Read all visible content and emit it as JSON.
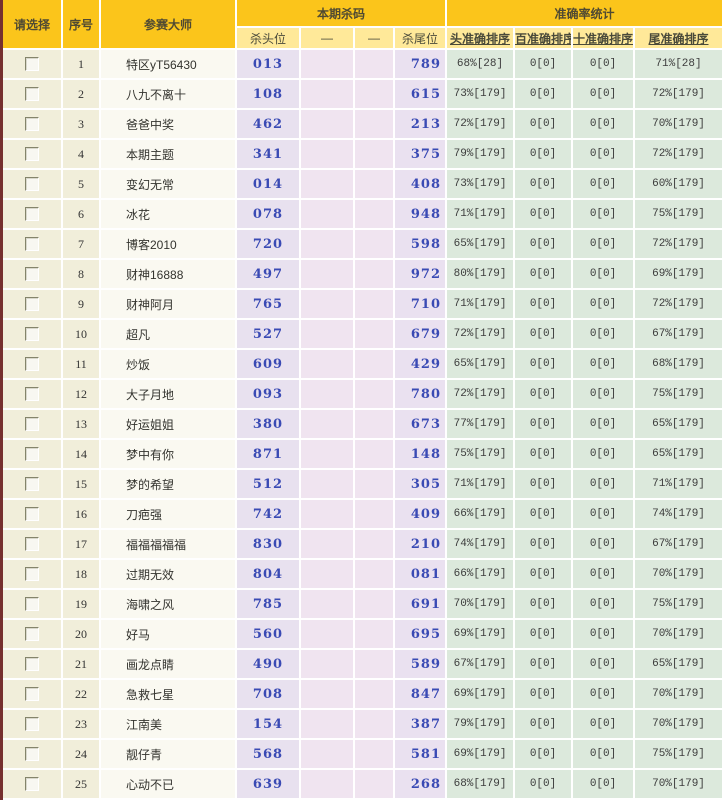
{
  "table": {
    "headers": {
      "select": "请选择",
      "index": "序号",
      "master": "参赛大师",
      "kill_group": "本期杀码",
      "accuracy_group": "准确率统计",
      "kill_head": "杀头位",
      "dash1": "—",
      "dash2": "—",
      "kill_tail": "杀尾位",
      "acc_head": "头准确排序",
      "acc_hundred": "百准确排序",
      "acc_ten": "十准确排序",
      "acc_tail": "尾准确排序"
    },
    "rows": [
      {
        "index": "1",
        "master": "特区yT56430",
        "kill_head": "013",
        "kill_tail": "789",
        "head_acc": "68%[28]",
        "hundred_acc": "0[0]",
        "ten_acc": "0[0]",
        "tail_acc": "71%[28]"
      },
      {
        "index": "2",
        "master": "八九不离十",
        "kill_head": "108",
        "kill_tail": "615",
        "head_acc": "73%[179]",
        "hundred_acc": "0[0]",
        "ten_acc": "0[0]",
        "tail_acc": "72%[179]"
      },
      {
        "index": "3",
        "master": "爸爸中奖",
        "kill_head": "462",
        "kill_tail": "213",
        "head_acc": "72%[179]",
        "hundred_acc": "0[0]",
        "ten_acc": "0[0]",
        "tail_acc": "70%[179]"
      },
      {
        "index": "4",
        "master": "本期主题",
        "kill_head": "341",
        "kill_tail": "375",
        "head_acc": "79%[179]",
        "hundred_acc": "0[0]",
        "ten_acc": "0[0]",
        "tail_acc": "72%[179]"
      },
      {
        "index": "5",
        "master": "变幻无常",
        "kill_head": "014",
        "kill_tail": "408",
        "head_acc": "73%[179]",
        "hundred_acc": "0[0]",
        "ten_acc": "0[0]",
        "tail_acc": "60%[179]"
      },
      {
        "index": "6",
        "master": "冰花",
        "kill_head": "078",
        "kill_tail": "948",
        "head_acc": "71%[179]",
        "hundred_acc": "0[0]",
        "ten_acc": "0[0]",
        "tail_acc": "75%[179]"
      },
      {
        "index": "7",
        "master": "博客2010",
        "kill_head": "720",
        "kill_tail": "598",
        "head_acc": "65%[179]",
        "hundred_acc": "0[0]",
        "ten_acc": "0[0]",
        "tail_acc": "72%[179]"
      },
      {
        "index": "8",
        "master": "财神16888",
        "kill_head": "497",
        "kill_tail": "972",
        "head_acc": "80%[179]",
        "hundred_acc": "0[0]",
        "ten_acc": "0[0]",
        "tail_acc": "69%[179]"
      },
      {
        "index": "9",
        "master": "财神阿月",
        "kill_head": "765",
        "kill_tail": "710",
        "head_acc": "71%[179]",
        "hundred_acc": "0[0]",
        "ten_acc": "0[0]",
        "tail_acc": "72%[179]"
      },
      {
        "index": "10",
        "master": "超凡",
        "kill_head": "527",
        "kill_tail": "679",
        "head_acc": "72%[179]",
        "hundred_acc": "0[0]",
        "ten_acc": "0[0]",
        "tail_acc": "67%[179]"
      },
      {
        "index": "11",
        "master": "炒饭",
        "kill_head": "609",
        "kill_tail": "429",
        "head_acc": "65%[179]",
        "hundred_acc": "0[0]",
        "ten_acc": "0[0]",
        "tail_acc": "68%[179]"
      },
      {
        "index": "12",
        "master": "大子月地",
        "kill_head": "093",
        "kill_tail": "780",
        "head_acc": "72%[179]",
        "hundred_acc": "0[0]",
        "ten_acc": "0[0]",
        "tail_acc": "75%[179]"
      },
      {
        "index": "13",
        "master": "好运姐姐",
        "kill_head": "380",
        "kill_tail": "673",
        "head_acc": "77%[179]",
        "hundred_acc": "0[0]",
        "ten_acc": "0[0]",
        "tail_acc": "65%[179]"
      },
      {
        "index": "14",
        "master": "梦中有你",
        "kill_head": "871",
        "kill_tail": "148",
        "head_acc": "75%[179]",
        "hundred_acc": "0[0]",
        "ten_acc": "0[0]",
        "tail_acc": "65%[179]"
      },
      {
        "index": "15",
        "master": "梦的希望",
        "kill_head": "512",
        "kill_tail": "305",
        "head_acc": "71%[179]",
        "hundred_acc": "0[0]",
        "ten_acc": "0[0]",
        "tail_acc": "71%[179]"
      },
      {
        "index": "16",
        "master": "刀疤强",
        "kill_head": "742",
        "kill_tail": "409",
        "head_acc": "66%[179]",
        "hundred_acc": "0[0]",
        "ten_acc": "0[0]",
        "tail_acc": "74%[179]"
      },
      {
        "index": "17",
        "master": "福福福福福",
        "kill_head": "830",
        "kill_tail": "210",
        "head_acc": "74%[179]",
        "hundred_acc": "0[0]",
        "ten_acc": "0[0]",
        "tail_acc": "67%[179]"
      },
      {
        "index": "18",
        "master": "过期无效",
        "kill_head": "804",
        "kill_tail": "081",
        "head_acc": "66%[179]",
        "hundred_acc": "0[0]",
        "ten_acc": "0[0]",
        "tail_acc": "70%[179]"
      },
      {
        "index": "19",
        "master": "海啸之风",
        "kill_head": "785",
        "kill_tail": "691",
        "head_acc": "70%[179]",
        "hundred_acc": "0[0]",
        "ten_acc": "0[0]",
        "tail_acc": "75%[179]"
      },
      {
        "index": "20",
        "master": "好马",
        "kill_head": "560",
        "kill_tail": "695",
        "head_acc": "69%[179]",
        "hundred_acc": "0[0]",
        "ten_acc": "0[0]",
        "tail_acc": "70%[179]"
      },
      {
        "index": "21",
        "master": "画龙点睛",
        "kill_head": "490",
        "kill_tail": "589",
        "head_acc": "67%[179]",
        "hundred_acc": "0[0]",
        "ten_acc": "0[0]",
        "tail_acc": "65%[179]"
      },
      {
        "index": "22",
        "master": "急救七星",
        "kill_head": "708",
        "kill_tail": "847",
        "head_acc": "69%[179]",
        "hundred_acc": "0[0]",
        "ten_acc": "0[0]",
        "tail_acc": "70%[179]"
      },
      {
        "index": "23",
        "master": "江南美",
        "kill_head": "154",
        "kill_tail": "387",
        "head_acc": "79%[179]",
        "hundred_acc": "0[0]",
        "ten_acc": "0[0]",
        "tail_acc": "70%[179]"
      },
      {
        "index": "24",
        "master": "靓仔青",
        "kill_head": "568",
        "kill_tail": "581",
        "head_acc": "69%[179]",
        "hundred_acc": "0[0]",
        "ten_acc": "0[0]",
        "tail_acc": "75%[179]"
      },
      {
        "index": "25",
        "master": "心动不已",
        "kill_head": "639",
        "kill_tail": "268",
        "head_acc": "68%[179]",
        "hundred_acc": "0[0]",
        "ten_acc": "0[0]",
        "tail_acc": "70%[179]"
      }
    ]
  },
  "colors": {
    "header_gold": "#fbc51b",
    "subheader_yellow": "#ffe999",
    "row_beige": "#f1eeda",
    "row_lavender": "#e8e1ef",
    "row_green": "#dce9dc",
    "number_blue": "#3a4ab4",
    "left_border_maroon": "#76302f"
  }
}
